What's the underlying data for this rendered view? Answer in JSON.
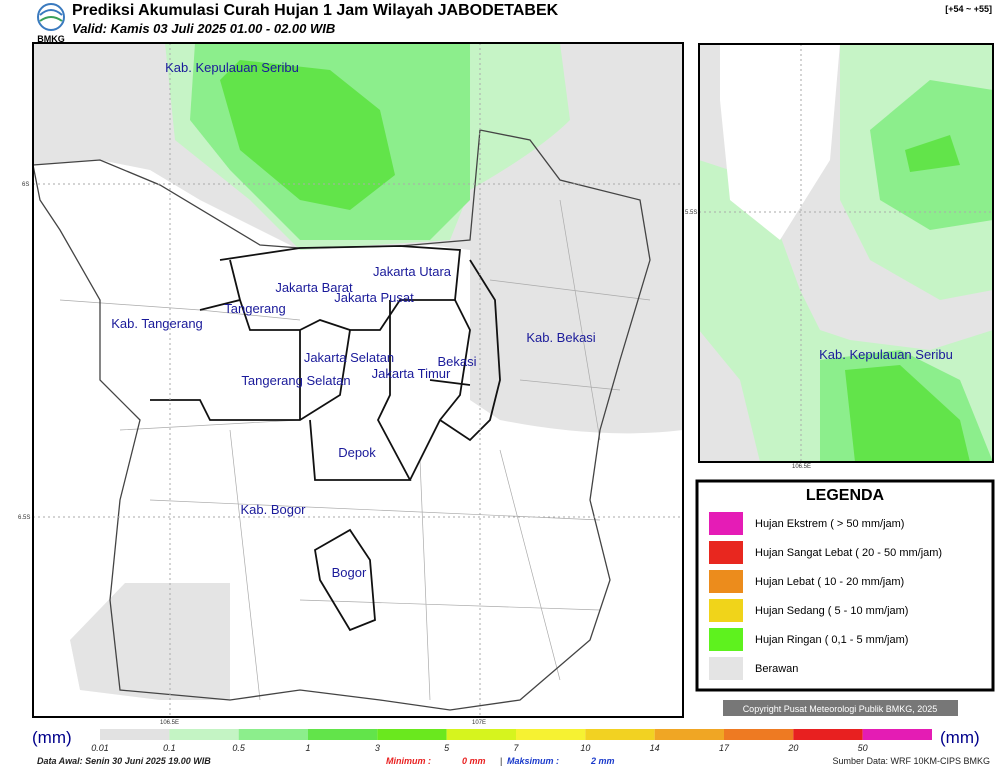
{
  "header": {
    "logo": "BMKG",
    "title": "Prediksi Akumulasi Curah Hujan 1 Jam Wilayah JABODETABEK",
    "subtitle": "Valid: Kamis 03 Juli 2025 01.00 - 02.00 WIB",
    "step": "[+54 ~ +55]"
  },
  "map": {
    "labels": [
      "Kab. Kepulauan Seribu",
      "Jakarta Utara",
      "Jakarta Barat",
      "Jakarta Pusat",
      "Tangerang",
      "Kab. Tangerang",
      "Jakarta Selatan",
      "Jakarta Timur",
      "Bekasi",
      "Kab. Bekasi",
      "Tangerang Selatan",
      "Depok",
      "Kab. Bogor",
      "Bogor"
    ],
    "lat_ticks": [
      "6S",
      "6.5S"
    ],
    "lon_ticks": [
      "106.5E",
      "107E"
    ]
  },
  "inset": {
    "label": "Kab. Kepulauan Seribu",
    "lat_tick": "5.5S",
    "lon_tick": "106.5E"
  },
  "legend": {
    "title": "LEGENDA",
    "items": [
      {
        "label": "Hujan Ekstrem ( > 50 mm/jam)",
        "color": "#e51cb6"
      },
      {
        "label": "Hujan Sangat Lebat ( 20 - 50 mm/jam)",
        "color": "#e8271f"
      },
      {
        "label": "Hujan Lebat ( 10 - 20 mm/jam)",
        "color": "#ec8c1c"
      },
      {
        "label": "Hujan Sedang ( 5 - 10 mm/jam)",
        "color": "#f0d41a"
      },
      {
        "label": "Hujan Ringan ( 0,1 - 5 mm/jam)",
        "color": "#5ef21e"
      },
      {
        "label": "Berawan",
        "color": "#e4e4e4"
      }
    ]
  },
  "copyright": "Copyright Pusat Meteorologi Publik BMKG, 2025",
  "colorbar": {
    "unit": "(mm)",
    "labels": [
      "0.01",
      "0.1",
      "0.5",
      "1",
      "3",
      "5",
      "7",
      "10",
      "14",
      "17",
      "20",
      "50"
    ],
    "colors": [
      "#e2e2e2",
      "#c4f4c4",
      "#8cee8c",
      "#62e44a",
      "#6ae81e",
      "#d6f41e",
      "#f6f232",
      "#f2d222",
      "#f0a624",
      "#ee7a22",
      "#e82020",
      "#e41cb4"
    ]
  },
  "footer": {
    "data_awal": "Data Awal: Senin 30 Juni 2025 19.00 WIB",
    "min_label": "Minimum :",
    "min_value": "0 mm",
    "sep": "|",
    "max_label": "Maksimum :",
    "max_value": "2 mm",
    "source": "Sumber Data: WRF 10KM-CIPS BMKG"
  }
}
